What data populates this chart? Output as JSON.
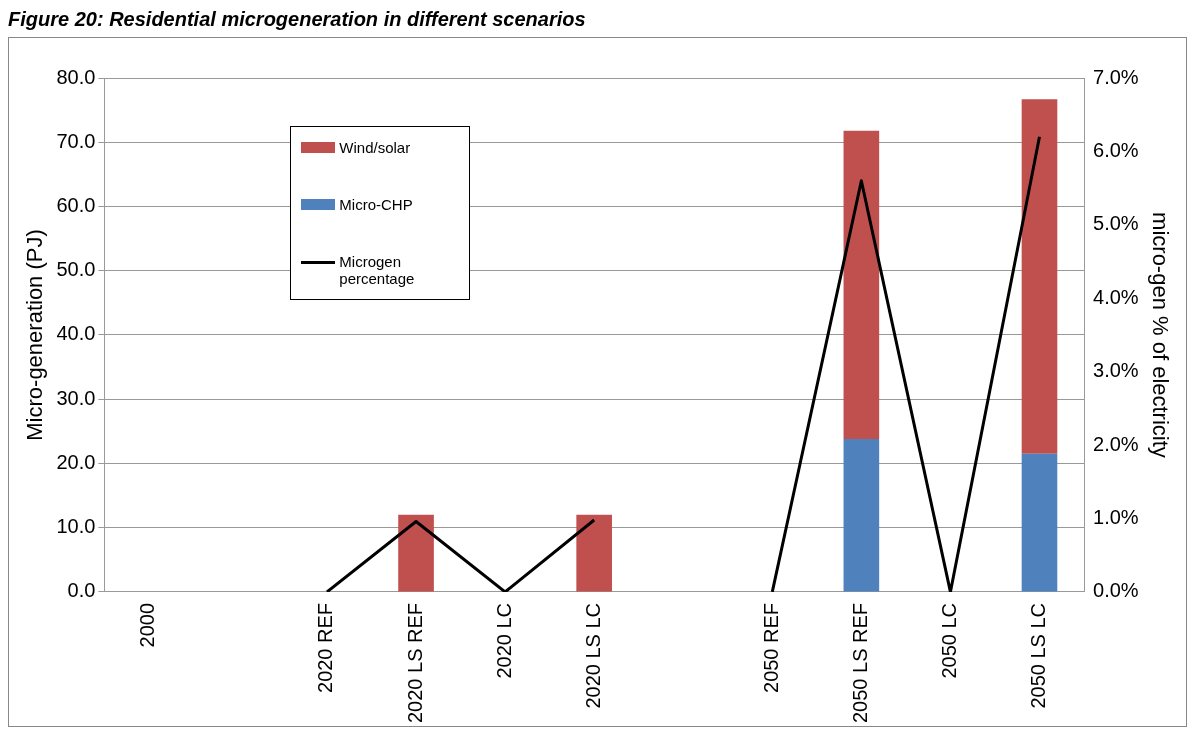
{
  "chart_data": {
    "type": "bar",
    "title": "Figure 20: Residential microgeneration in different scenarios",
    "categories": [
      "2000",
      null,
      "2020 REF",
      "2020 LS REF",
      "2020 LC",
      "2020 LS LC",
      null,
      "2050 REF",
      "2050 LS REF",
      "2050 LC",
      "2050 LS LC"
    ],
    "stacked": true,
    "series": [
      {
        "name": "Micro-CHP",
        "color": "#4f81bd",
        "values": [
          0,
          0,
          null,
          0,
          0,
          0,
          0,
          0,
          23.8,
          0,
          21.5
        ]
      },
      {
        "name": "Wind/solar",
        "color": "#c0504d",
        "values": [
          0,
          0,
          0,
          12.0,
          0,
          12.0,
          0,
          0,
          48.0,
          0,
          55.2
        ]
      },
      {
        "name": "Microgen percentage",
        "type": "line",
        "axis": "y2",
        "color": "#000000",
        "values": [
          null,
          null,
          0,
          0.96,
          0,
          0.98,
          null,
          0,
          5.6,
          0,
          6.2
        ]
      }
    ],
    "ylabel": "Micro-generation (PJ)",
    "y2label": "micro-gen % of electricity",
    "ylim": [
      0,
      80
    ],
    "yticks": [
      {
        "value": 0,
        "label": "0.0"
      },
      {
        "value": 10,
        "label": "10.0"
      },
      {
        "value": 20,
        "label": "20.0"
      },
      {
        "value": 30,
        "label": "30.0"
      },
      {
        "value": 40,
        "label": "40.0"
      },
      {
        "value": 50,
        "label": "50.0"
      },
      {
        "value": 60,
        "label": "60.0"
      },
      {
        "value": 70,
        "label": "70.0"
      },
      {
        "value": 80,
        "label": "80.0"
      }
    ],
    "y2lim": [
      0,
      7
    ],
    "y2ticks": [
      {
        "value": 0,
        "label": "0.0%"
      },
      {
        "value": 1,
        "label": "1.0%"
      },
      {
        "value": 2,
        "label": "2.0%"
      },
      {
        "value": 3,
        "label": "3.0%"
      },
      {
        "value": 4,
        "label": "4.0%"
      },
      {
        "value": 5,
        "label": "5.0%"
      },
      {
        "value": 6,
        "label": "6.0%"
      },
      {
        "value": 7,
        "label": "7.0%"
      }
    ],
    "grid": "y",
    "legend": "top left",
    "marker": "none"
  }
}
